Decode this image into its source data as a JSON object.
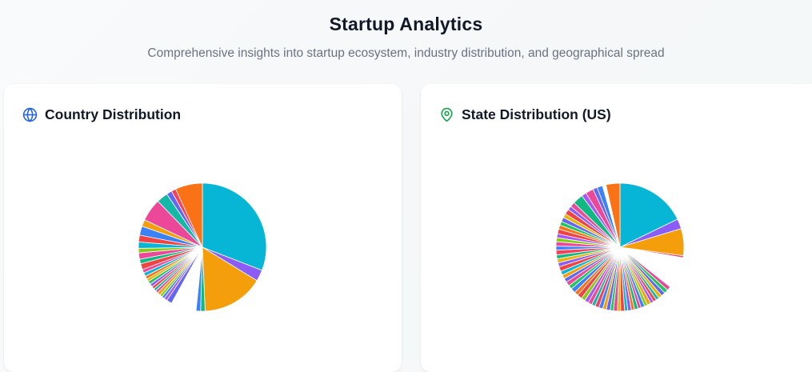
{
  "header": {
    "title": "Startup Analytics",
    "subtitle": "Comprehensive insights into startup ecosystem, industry distribution, and geographical spread"
  },
  "cards": [
    {
      "title": "Country Distribution",
      "icon": "globe-icon",
      "icon_color": "#2563eb"
    },
    {
      "title": "State Distribution (US)",
      "icon": "map-pin-icon",
      "icon_color": "#16a34a"
    }
  ],
  "palette": [
    "#06b6d4",
    "#8b5cf6",
    "#f59e0b",
    "#10b981",
    "#3b82f6",
    "#f97316",
    "#ec4899",
    "#ef4444",
    "#84cc16",
    "#6366f1",
    "#14b8a6",
    "#eab308",
    "#a855f7",
    "#22c55e",
    "#f43f5e"
  ],
  "chart_data": [
    {
      "type": "pie",
      "title": "Country Distribution",
      "slices": [
        {
          "color": "#06b6d4",
          "value": 27.0
        },
        {
          "color": "#8b5cf6",
          "value": 2.5
        },
        {
          "color": "#f59e0b",
          "value": 13.6
        },
        {
          "color": "#10b981",
          "value": 1.0
        },
        {
          "color": "#3b82f6",
          "value": 1.0
        },
        {
          "color": "#ffffff",
          "value": 5.6
        },
        {
          "color": "#6366f1",
          "value": 1.2
        },
        {
          "color": "#a855f7",
          "value": 0.7
        },
        {
          "color": "#3b82f6",
          "value": 0.6
        },
        {
          "color": "#84cc16",
          "value": 0.6
        },
        {
          "color": "#f59e0b",
          "value": 0.7
        },
        {
          "color": "#ec4899",
          "value": 0.6
        },
        {
          "color": "#14b8a6",
          "value": 0.6
        },
        {
          "color": "#ef4444",
          "value": 0.6
        },
        {
          "color": "#8b5cf6",
          "value": 0.7
        },
        {
          "color": "#22c55e",
          "value": 0.7
        },
        {
          "color": "#eab308",
          "value": 0.6
        },
        {
          "color": "#f97316",
          "value": 0.7
        },
        {
          "color": "#06b6d4",
          "value": 0.8
        },
        {
          "color": "#ec4899",
          "value": 0.8
        },
        {
          "color": "#ef4444",
          "value": 1.3
        },
        {
          "color": "#10b981",
          "value": 1.0
        },
        {
          "color": "#ec4899",
          "value": 1.4
        },
        {
          "color": "#84cc16",
          "value": 1.0
        },
        {
          "color": "#06b6d4",
          "value": 1.4
        },
        {
          "color": "#ef4444",
          "value": 1.5
        },
        {
          "color": "#3b82f6",
          "value": 2.0
        },
        {
          "color": "#f59e0b",
          "value": 1.5
        },
        {
          "color": "#ec4899",
          "value": 5.0
        },
        {
          "color": "#14b8a6",
          "value": 2.5
        },
        {
          "color": "#6366f1",
          "value": 1.2
        },
        {
          "color": "#f43f5e",
          "value": 1.0
        },
        {
          "color": "#f97316",
          "value": 6.0
        }
      ]
    },
    {
      "type": "pie",
      "title": "State Distribution (US)",
      "slices": [
        {
          "color": "#06b6d4",
          "value": 17.7
        },
        {
          "color": "#8b5cf6",
          "value": 2.5
        },
        {
          "color": "#f59e0b",
          "value": 6.8
        },
        {
          "color": "#f43f5e",
          "value": 0.5
        },
        {
          "color": "#ffffff",
          "value": 8.0
        },
        {
          "color": "#ec4899",
          "value": 1.0
        },
        {
          "color": "#22c55e",
          "value": 1.0
        },
        {
          "color": "#6366f1",
          "value": 1.0
        },
        {
          "color": "#eab308",
          "value": 0.9
        },
        {
          "color": "#14b8a6",
          "value": 0.8
        },
        {
          "color": "#ef4444",
          "value": 0.8
        },
        {
          "color": "#a855f7",
          "value": 0.8
        },
        {
          "color": "#f59e0b",
          "value": 0.9
        },
        {
          "color": "#84cc16",
          "value": 0.8
        },
        {
          "color": "#3b82f6",
          "value": 0.9
        },
        {
          "color": "#ec4899",
          "value": 0.8
        },
        {
          "color": "#10b981",
          "value": 0.9
        },
        {
          "color": "#f97316",
          "value": 0.8
        },
        {
          "color": "#8b5cf6",
          "value": 0.9
        },
        {
          "color": "#06b6d4",
          "value": 0.8
        },
        {
          "color": "#ef4444",
          "value": 1.0
        },
        {
          "color": "#eab308",
          "value": 0.8
        },
        {
          "color": "#ec4899",
          "value": 1.0
        },
        {
          "color": "#22c55e",
          "value": 0.8
        },
        {
          "color": "#6366f1",
          "value": 1.0
        },
        {
          "color": "#f59e0b",
          "value": 0.9
        },
        {
          "color": "#3b82f6",
          "value": 1.0
        },
        {
          "color": "#f43f5e",
          "value": 1.0
        },
        {
          "color": "#14b8a6",
          "value": 0.9
        },
        {
          "color": "#ec4899",
          "value": 1.0
        },
        {
          "color": "#a855f7",
          "value": 1.0
        },
        {
          "color": "#84cc16",
          "value": 1.0
        },
        {
          "color": "#ef4444",
          "value": 1.2
        },
        {
          "color": "#f97316",
          "value": 1.0
        },
        {
          "color": "#3b82f6",
          "value": 1.2
        },
        {
          "color": "#22c55e",
          "value": 1.0
        },
        {
          "color": "#ec4899",
          "value": 1.1
        },
        {
          "color": "#6366f1",
          "value": 1.0
        },
        {
          "color": "#f59e0b",
          "value": 1.0
        },
        {
          "color": "#06b6d4",
          "value": 1.0
        },
        {
          "color": "#ef4444",
          "value": 1.2
        },
        {
          "color": "#8b5cf6",
          "value": 1.0
        },
        {
          "color": "#eab308",
          "value": 1.0
        },
        {
          "color": "#10b981",
          "value": 1.0
        },
        {
          "color": "#f43f5e",
          "value": 1.2
        },
        {
          "color": "#3b82f6",
          "value": 1.0
        },
        {
          "color": "#ec4899",
          "value": 1.1
        },
        {
          "color": "#84cc16",
          "value": 1.0
        },
        {
          "color": "#a855f7",
          "value": 1.0
        },
        {
          "color": "#ef4444",
          "value": 1.2
        },
        {
          "color": "#f97316",
          "value": 1.0
        },
        {
          "color": "#22c55e",
          "value": 1.0
        },
        {
          "color": "#6366f1",
          "value": 1.1
        },
        {
          "color": "#eab308",
          "value": 1.0
        },
        {
          "color": "#ef4444",
          "value": 1.3
        },
        {
          "color": "#8b5cf6",
          "value": 1.0
        },
        {
          "color": "#ec4899",
          "value": 1.2
        },
        {
          "color": "#10b981",
          "value": 2.6
        },
        {
          "color": "#a855f7",
          "value": 1.2
        },
        {
          "color": "#ec4899",
          "value": 2.0
        },
        {
          "color": "#6366f1",
          "value": 1.1
        },
        {
          "color": "#3b82f6",
          "value": 1.4
        },
        {
          "color": "#ffffff",
          "value": 0.9
        },
        {
          "color": "#f97316",
          "value": 3.5
        }
      ]
    }
  ]
}
